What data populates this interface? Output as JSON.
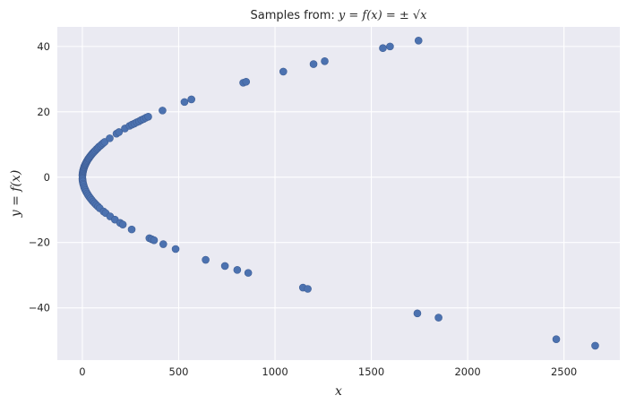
{
  "chart_data": {
    "type": "scatter",
    "title": {
      "prefix": "Samples from: ",
      "math": "y = f(x) = ± √x"
    },
    "xlabel": "x",
    "ylabel": "y = f(x)",
    "xlim": [
      -130,
      2790
    ],
    "ylim": [
      -56,
      46
    ],
    "xticks": [
      0,
      500,
      1000,
      1500,
      2000,
      2500
    ],
    "yticks": [
      -40,
      -20,
      0,
      20,
      40
    ],
    "grid": true,
    "colors": {
      "background": "#eaeaf2",
      "grid": "#ffffff",
      "point": "#4c72b0"
    },
    "series": [
      {
        "x": [
          0.3,
          1,
          2,
          3,
          4,
          5,
          6,
          8,
          9,
          10,
          12,
          14,
          16,
          18,
          20,
          22,
          25,
          28,
          31,
          34,
          37,
          41,
          45,
          49,
          53,
          58,
          63,
          68,
          74,
          80,
          86,
          93,
          100,
          108,
          116,
          142,
          177,
          190,
          221,
          245,
          258,
          270,
          282,
          294,
          306,
          318,
          330,
          342,
          416,
          530,
          566,
          835,
          850,
          1043,
          1200,
          1258,
          1560,
          1597,
          1745,
          0.3,
          1,
          2,
          4,
          6,
          9,
          12,
          16,
          20,
          25,
          30,
          36,
          42,
          49,
          56,
          64,
          72,
          81,
          90,
          110,
          121,
          144,
          169,
          196,
          210,
          256,
          348,
          360,
          372,
          420,
          484,
          640,
          740,
          804,
          861,
          1145,
          1170,
          1739,
          1849,
          2460,
          2662
        ],
        "y": [
          0.5,
          1,
          1.4,
          1.7,
          2,
          2.2,
          2.5,
          2.8,
          3,
          3.2,
          3.5,
          3.7,
          4,
          4.2,
          4.5,
          4.7,
          5,
          5.3,
          5.6,
          5.8,
          6.1,
          6.4,
          6.7,
          7,
          7.3,
          7.6,
          7.9,
          8.2,
          8.6,
          8.9,
          9.3,
          9.6,
          10,
          10.4,
          10.8,
          11.9,
          13.3,
          13.8,
          14.9,
          15.7,
          16.1,
          16.4,
          16.8,
          17.1,
          17.5,
          17.8,
          18.2,
          18.5,
          20.4,
          23,
          23.8,
          28.9,
          29.2,
          32.3,
          34.6,
          35.5,
          39.5,
          40,
          41.8,
          -0.5,
          -1,
          -1.4,
          -2,
          -2.4,
          -3,
          -3.5,
          -4,
          -4.5,
          -5,
          -5.5,
          -6,
          -6.5,
          -7,
          -7.5,
          -8,
          -8.5,
          -9,
          -9.5,
          -10.5,
          -11,
          -12,
          -13,
          -14,
          -14.5,
          -16,
          -18.7,
          -19,
          -19.3,
          -20.5,
          -22,
          -25.3,
          -27.2,
          -28.4,
          -29.3,
          -33.8,
          -34.2,
          -41.7,
          -43,
          -49.6,
          -51.6
        ]
      }
    ]
  }
}
